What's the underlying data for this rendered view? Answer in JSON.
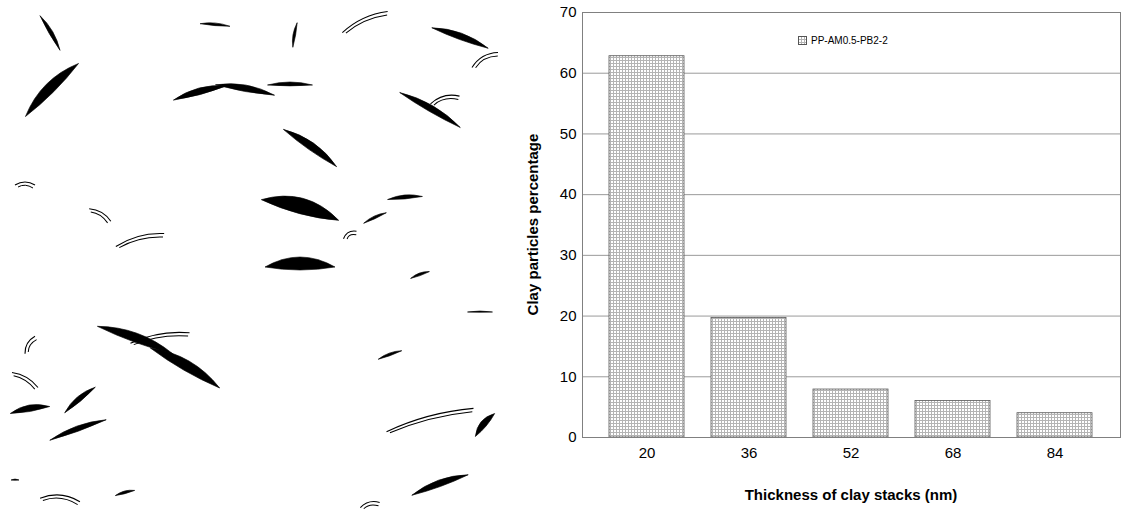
{
  "chart_data": {
    "type": "bar",
    "categories": [
      20,
      36,
      52,
      68,
      84
    ],
    "series": [
      {
        "name": "PP-AM0.5-PB2-2",
        "color": "#b4b4b4",
        "values": [
          62.8,
          19.7,
          7.9,
          6.0,
          4.0
        ]
      }
    ],
    "xlabel": "Thickness of clay stacks (nm)",
    "ylabel": "Clay particles percentage",
    "ylim": [
      0,
      70
    ],
    "yticks": [
      0,
      10,
      20,
      30,
      40,
      50,
      60,
      70
    ],
    "grid": true,
    "legend": "top"
  }
}
